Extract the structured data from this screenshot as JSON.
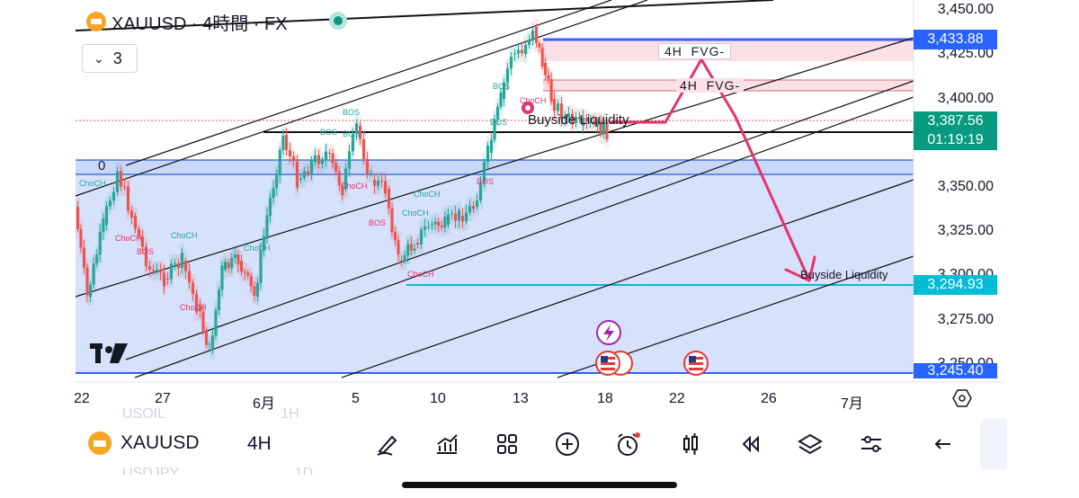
{
  "header": {
    "symbol_title": "XAUUSD · 4時間 · FX",
    "interval_collapse_value": "3"
  },
  "price_axis": {
    "labels": [
      "3,450.00",
      "3,425.00",
      "3,400.00",
      "3,350.00",
      "3,325.00",
      "3,275.00"
    ],
    "partial_labels": [
      "3,300.00",
      "3,250.00"
    ],
    "tags": {
      "fvg_price": "3,433.88",
      "last_price": "3,387.56",
      "countdown": "01:19:19",
      "sellside_price": "3,294.93",
      "low_price": "3,245.40"
    }
  },
  "time_axis": {
    "labels": [
      "22",
      "27",
      "6月",
      "5",
      "10",
      "13",
      "18",
      "22",
      "26",
      "7月"
    ]
  },
  "annotations": {
    "fvg_upper": "4H  FVG-",
    "fvg_lower": "4H  FVG-",
    "buyside_liquidity": "Buyside Liquidity",
    "sellside_liquidity": "Buyside Liquidity",
    "zero_label": "0",
    "structure_labels": [
      "ChoCH",
      "BOS",
      "ChoCH",
      "BOS",
      "ChoCH",
      "ChoCH",
      "ChoCH",
      "BOS",
      "BOS",
      "ChoCH",
      "BOS",
      "ChoCH",
      "ChoCH",
      "ChoCH",
      "BOS",
      "BOS",
      "ChoCH",
      "BOS"
    ]
  },
  "bottom_bar": {
    "symbol": "XAUUSD",
    "interval": "4H",
    "faded_rows": [
      "USOIL  1H",
      "USDJPY  1D"
    ]
  },
  "colors": {
    "bull": "#26a69a",
    "bear": "#ef5350",
    "zone_blue": "#d6e1fb",
    "fvg_pink": "#fbe0e6",
    "arrow": "#e6336b",
    "tag_blue": "#2962ff",
    "tag_green": "#089981",
    "tag_cyan": "#00bcd4"
  }
}
